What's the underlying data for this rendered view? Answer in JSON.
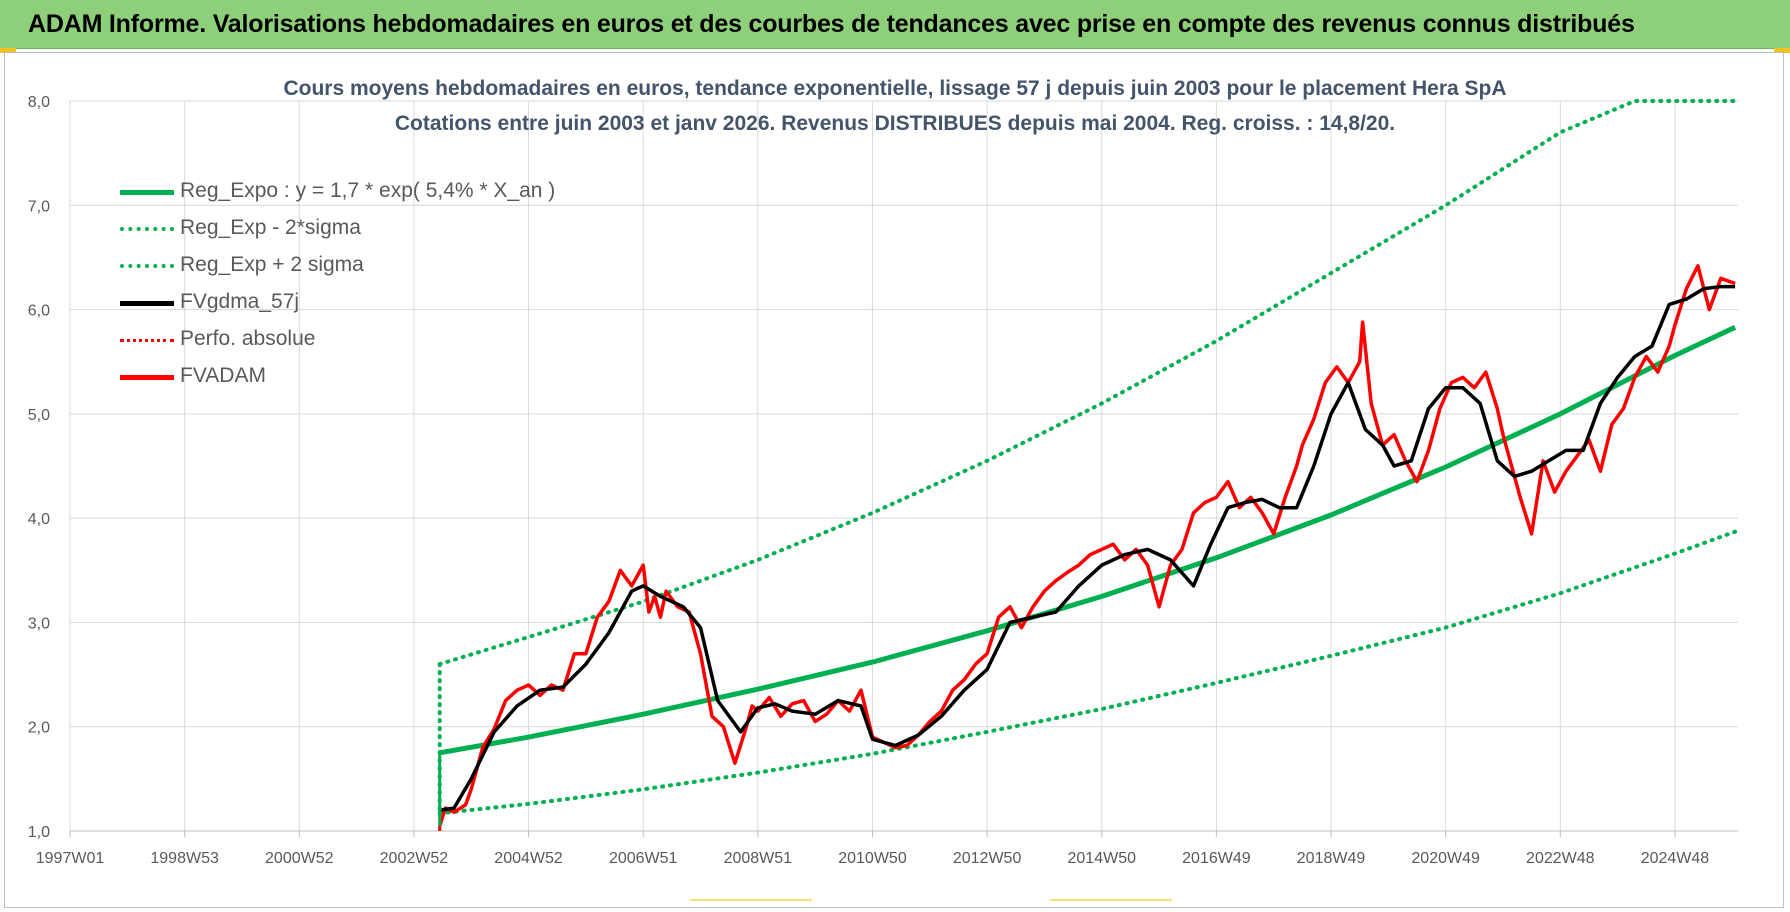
{
  "banner": {
    "title": "ADAM Informe. Valorisations hebdomadaires en euros et des courbes de tendances avec prise en compte des revenus connus distribués"
  },
  "colors": {
    "banner_bg": "#8ed07a",
    "trend": "#00b050",
    "fvadam": "#ff0000",
    "gdma": "#000000",
    "grid": "#d9d9d9"
  },
  "chart_data": {
    "type": "line",
    "title": "Cours moyens hebdomadaires en euros, tendance exponentielle, lissage 57 j depuis juin 2003 pour le placement Hera SpA",
    "subtitle": "Cotations entre juin 2003 et janv 2026.  Revenus DISTRIBUES depuis mai 2004. Reg. croiss. : 14,8/20.",
    "xlabel": "",
    "ylabel": "",
    "ylim": [
      1.0,
      8.0
    ],
    "y_ticks": [
      "1,0",
      "2,0",
      "3,0",
      "4,0",
      "5,0",
      "6,0",
      "7,0",
      "8,0"
    ],
    "x_ticks": [
      "1997W01",
      "1998W53",
      "2000W52",
      "2002W52",
      "2004W52",
      "2006W51",
      "2008W51",
      "2010W50",
      "2012W50",
      "2014W50",
      "2016W49",
      "2018W49",
      "2020W49",
      "2022W48",
      "2024W48"
    ],
    "x_tick_years": [
      1997.0,
      1999.0,
      2001.0,
      2003.0,
      2005.0,
      2007.0,
      2009.0,
      2011.0,
      2013.0,
      2015.0,
      2017.0,
      2019.0,
      2021.0,
      2023.0,
      2025.0
    ],
    "xlim_years": [
      1997.0,
      2026.1
    ],
    "grid": true,
    "legend_position": "top-left",
    "series": [
      {
        "name": "Reg_Expo : y = 1,7 * exp( 5,4% *  X_an )",
        "style": "solid",
        "color": "#00b050",
        "x": [
          2003.45,
          2005.0,
          2007.0,
          2009.0,
          2011.0,
          2013.0,
          2015.0,
          2017.0,
          2019.0,
          2021.0,
          2023.0,
          2025.0,
          2026.05
        ],
        "y": [
          1.75,
          1.9,
          2.12,
          2.36,
          2.62,
          2.92,
          3.25,
          3.62,
          4.03,
          4.49,
          5.0,
          5.56,
          5.83
        ]
      },
      {
        "name": "Reg_Exp - 2*sigma",
        "style": "dotted",
        "color": "#00b050",
        "x": [
          2003.45,
          2005.0,
          2007.0,
          2009.0,
          2011.0,
          2013.0,
          2015.0,
          2017.0,
          2019.0,
          2021.0,
          2023.0,
          2025.0,
          2026.05
        ],
        "y": [
          1.17,
          1.26,
          1.4,
          1.56,
          1.74,
          1.95,
          2.17,
          2.42,
          2.68,
          2.95,
          3.28,
          3.66,
          3.87
        ]
      },
      {
        "name": "Reg_Exp + 2 sigma",
        "style": "dotted",
        "color": "#00b050",
        "x": [
          2003.45,
          2005.0,
          2007.0,
          2009.0,
          2011.0,
          2013.0,
          2015.0,
          2017.0,
          2019.0,
          2021.0,
          2023.0,
          2024.3,
          2026.05
        ],
        "y": [
          2.6,
          2.86,
          3.2,
          3.6,
          4.05,
          4.55,
          5.1,
          5.7,
          6.35,
          7.0,
          7.7,
          8.0,
          8.0
        ]
      },
      {
        "name": "FVgdma_57j",
        "style": "solid",
        "color": "#000000",
        "x": [
          2003.45,
          2003.7,
          2004.0,
          2004.4,
          2004.8,
          2005.2,
          2005.6,
          2006.0,
          2006.4,
          2006.8,
          2007.0,
          2007.3,
          2007.7,
          2008.0,
          2008.3,
          2008.7,
          2009.0,
          2009.3,
          2009.6,
          2010.0,
          2010.4,
          2010.8,
          2011.0,
          2011.4,
          2011.8,
          2012.2,
          2012.6,
          2013.0,
          2013.4,
          2013.8,
          2014.2,
          2014.6,
          2015.0,
          2015.4,
          2015.8,
          2016.2,
          2016.6,
          2016.9,
          2017.2,
          2017.5,
          2017.8,
          2018.1,
          2018.4,
          2018.7,
          2019.0,
          2019.3,
          2019.6,
          2019.9,
          2020.1,
          2020.4,
          2020.7,
          2021.0,
          2021.3,
          2021.6,
          2021.9,
          2022.2,
          2022.5,
          2022.8,
          2023.1,
          2023.4,
          2023.7,
          2024.0,
          2024.3,
          2024.6,
          2024.9,
          2025.2,
          2025.5,
          2025.8,
          2026.05
        ],
        "y": [
          1.2,
          1.22,
          1.5,
          1.95,
          2.2,
          2.35,
          2.38,
          2.6,
          2.9,
          3.3,
          3.35,
          3.25,
          3.15,
          2.95,
          2.25,
          1.95,
          2.18,
          2.22,
          2.15,
          2.12,
          2.25,
          2.2,
          1.88,
          1.82,
          1.92,
          2.1,
          2.35,
          2.55,
          3.0,
          3.05,
          3.1,
          3.35,
          3.55,
          3.65,
          3.7,
          3.6,
          3.35,
          3.75,
          4.1,
          4.15,
          4.18,
          4.1,
          4.1,
          4.5,
          5.0,
          5.3,
          4.85,
          4.7,
          4.5,
          4.55,
          5.05,
          5.25,
          5.25,
          5.1,
          4.55,
          4.4,
          4.45,
          4.55,
          4.65,
          4.65,
          5.1,
          5.35,
          5.55,
          5.65,
          6.05,
          6.1,
          6.2,
          6.22,
          6.22
        ]
      },
      {
        "name": "Perfo. absolue",
        "style": "dotted",
        "color": "#ff0000",
        "x": [],
        "y": []
      },
      {
        "name": "FVADAM",
        "style": "solid",
        "color": "#ff0000",
        "x": [
          2003.45,
          2003.55,
          2003.7,
          2003.9,
          2004.0,
          2004.2,
          2004.4,
          2004.6,
          2004.8,
          2005.0,
          2005.2,
          2005.4,
          2005.6,
          2005.8,
          2006.0,
          2006.2,
          2006.4,
          2006.6,
          2006.8,
          2006.9,
          2007.0,
          2007.1,
          2007.2,
          2007.3,
          2007.4,
          2007.6,
          2007.8,
          2008.0,
          2008.2,
          2008.4,
          2008.6,
          2008.8,
          2008.9,
          2009.0,
          2009.2,
          2009.4,
          2009.6,
          2009.8,
          2010.0,
          2010.2,
          2010.4,
          2010.6,
          2010.8,
          2011.0,
          2011.2,
          2011.4,
          2011.6,
          2011.8,
          2012.0,
          2012.2,
          2012.4,
          2012.6,
          2012.8,
          2013.0,
          2013.2,
          2013.4,
          2013.6,
          2013.8,
          2014.0,
          2014.2,
          2014.4,
          2014.6,
          2014.8,
          2015.0,
          2015.2,
          2015.4,
          2015.6,
          2015.8,
          2016.0,
          2016.2,
          2016.4,
          2016.6,
          2016.8,
          2017.0,
          2017.2,
          2017.4,
          2017.6,
          2017.8,
          2018.0,
          2018.2,
          2018.4,
          2018.5,
          2018.7,
          2018.9,
          2019.1,
          2019.3,
          2019.5,
          2019.55,
          2019.7,
          2019.9,
          2020.1,
          2020.3,
          2020.5,
          2020.7,
          2020.9,
          2021.1,
          2021.3,
          2021.5,
          2021.7,
          2021.9,
          2022.0,
          2022.1,
          2022.3,
          2022.5,
          2022.7,
          2022.9,
          2023.1,
          2023.3,
          2023.5,
          2023.7,
          2023.9,
          2024.1,
          2024.3,
          2024.5,
          2024.7,
          2024.9,
          2025.0,
          2025.2,
          2025.4,
          2025.6,
          2025.8,
          2026.05
        ],
        "y": [
          1.05,
          1.22,
          1.18,
          1.25,
          1.4,
          1.8,
          1.98,
          2.25,
          2.35,
          2.4,
          2.3,
          2.4,
          2.35,
          2.7,
          2.7,
          3.05,
          3.2,
          3.5,
          3.35,
          3.45,
          3.55,
          3.1,
          3.25,
          3.05,
          3.3,
          3.15,
          3.1,
          2.7,
          2.1,
          2.0,
          1.65,
          2.0,
          2.2,
          2.15,
          2.28,
          2.1,
          2.22,
          2.25,
          2.05,
          2.12,
          2.25,
          2.15,
          2.35,
          1.9,
          1.85,
          1.8,
          1.82,
          1.92,
          2.05,
          2.15,
          2.35,
          2.45,
          2.6,
          2.7,
          3.05,
          3.15,
          2.95,
          3.15,
          3.3,
          3.4,
          3.48,
          3.55,
          3.65,
          3.7,
          3.75,
          3.6,
          3.7,
          3.55,
          3.15,
          3.55,
          3.7,
          4.05,
          4.15,
          4.2,
          4.35,
          4.1,
          4.2,
          4.05,
          3.85,
          4.2,
          4.5,
          4.7,
          4.95,
          5.3,
          5.45,
          5.3,
          5.5,
          5.88,
          5.1,
          4.7,
          4.8,
          4.55,
          4.35,
          4.65,
          5.05,
          5.3,
          5.35,
          5.25,
          5.4,
          5.05,
          4.8,
          4.6,
          4.2,
          3.85,
          4.55,
          4.25,
          4.45,
          4.6,
          4.75,
          4.45,
          4.9,
          5.05,
          5.35,
          5.55,
          5.4,
          5.65,
          5.85,
          6.2,
          6.42,
          6.0,
          6.3,
          6.25
        ]
      }
    ]
  }
}
